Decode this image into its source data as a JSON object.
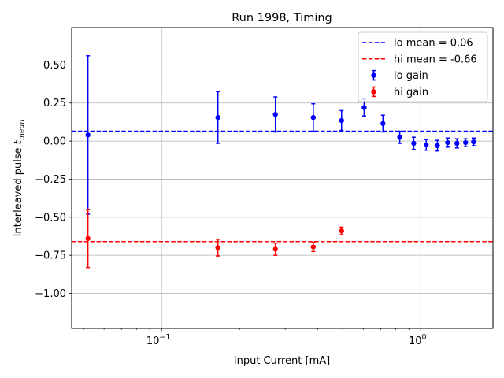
{
  "chart_data": {
    "type": "scatter",
    "title": "Run 1998, Timing",
    "xlabel": "Input Current [mA]",
    "ylabel": "Interleaved pulse t_mean",
    "ylabel_main": "Interleaved pulse ",
    "ylabel_symbol": "t",
    "ylabel_sub": "mean",
    "xscale": "log",
    "xlim": [
      0.045,
      1.9
    ],
    "ylim": [
      -1.23,
      0.745
    ],
    "grid": true,
    "legend_position": "top-right",
    "x_ticks": [
      {
        "value": 0.1,
        "base": "10",
        "exp": "−1"
      },
      {
        "value": 1,
        "base": "10",
        "exp": "0"
      }
    ],
    "y_ticks": [
      {
        "value": 0.5,
        "label": "0.50"
      },
      {
        "value": 0.25,
        "label": "0.25"
      },
      {
        "value": 0.0,
        "label": "0.00"
      },
      {
        "value": -0.25,
        "label": "−0.25"
      },
      {
        "value": -0.5,
        "label": "−0.50"
      },
      {
        "value": -0.75,
        "label": "−0.75"
      },
      {
        "value": -1.0,
        "label": "−1.00"
      }
    ],
    "series": [
      {
        "name": "lo gain",
        "color": "#0000ff",
        "x": [
          0.052,
          0.165,
          0.275,
          0.385,
          0.495,
          0.605,
          0.715,
          0.83,
          0.94,
          1.05,
          1.16,
          1.27,
          1.38,
          1.49,
          1.6
        ],
        "y": [
          0.04,
          0.155,
          0.175,
          0.155,
          0.135,
          0.22,
          0.115,
          0.025,
          -0.015,
          -0.025,
          -0.03,
          -0.01,
          -0.015,
          -0.01,
          -0.005
        ],
        "err": [
          0.52,
          0.17,
          0.115,
          0.09,
          0.065,
          0.055,
          0.055,
          0.04,
          0.04,
          0.035,
          0.035,
          0.03,
          0.03,
          0.025,
          0.025
        ]
      },
      {
        "name": "hi gain",
        "color": "#ff0000",
        "x": [
          0.052,
          0.165,
          0.275,
          0.385,
          0.495
        ],
        "y": [
          -0.64,
          -0.7,
          -0.71,
          -0.695,
          -0.59
        ],
        "err": [
          0.19,
          0.055,
          0.04,
          0.03,
          0.025
        ]
      }
    ],
    "reference_lines": [
      {
        "name": "lo mean = 0.06",
        "value": 0.065,
        "color": "#0000ff"
      },
      {
        "name": "hi mean = -0.66",
        "value": -0.66,
        "color": "#ff0000"
      }
    ],
    "legend": [
      {
        "label": "lo mean = 0.06",
        "kind": "line",
        "color": "#0000ff"
      },
      {
        "label": "hi mean = -0.66",
        "kind": "line",
        "color": "#ff0000"
      },
      {
        "label": "lo gain",
        "kind": "errorbar",
        "color": "#0000ff"
      },
      {
        "label": "hi gain",
        "kind": "errorbar",
        "color": "#ff0000"
      }
    ]
  }
}
